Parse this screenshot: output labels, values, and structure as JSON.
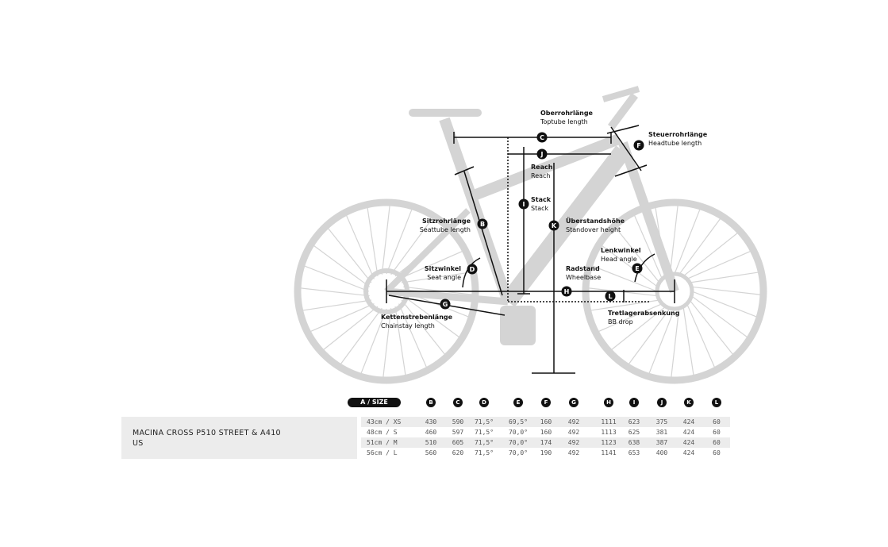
{
  "labels": {
    "C": {
      "de": "Oberrohrlänge",
      "en": "Toptube length"
    },
    "F": {
      "de": "Steuerrohrlänge",
      "en": "Headtube length"
    },
    "J": {
      "de": "Reach",
      "en": "Reach"
    },
    "I": {
      "de": "Stack",
      "en": "Stack"
    },
    "K": {
      "de": "Überstandshöhe",
      "en": "Standover height"
    },
    "B": {
      "de": "Sitzrohrlänge",
      "en": "Seattube length"
    },
    "D": {
      "de": "Sitzwinkel",
      "en": "Seat angle"
    },
    "E": {
      "de": "Lenkwinkel",
      "en": "Head angle"
    },
    "H": {
      "de": "Radstand",
      "en": "Wheelbase"
    },
    "G": {
      "de": "Kettenstrebenlänge",
      "en": "Chainstay length"
    },
    "L": {
      "de": "Tretlagerabsenkung",
      "en": "BB drop"
    }
  },
  "table": {
    "model": "MACINA CROSS P510 STREET & A410 US",
    "size_header": "A / SIZE",
    "columns": [
      "B",
      "C",
      "D",
      "E",
      "F",
      "G",
      "H",
      "I",
      "J",
      "K",
      "L"
    ],
    "rows": [
      {
        "size": "43cm / XS",
        "values": [
          "430",
          "590",
          "71,5°",
          "69,5°",
          "160",
          "492",
          "1111",
          "623",
          "375",
          "424",
          "60"
        ]
      },
      {
        "size": "48cm / S",
        "values": [
          "460",
          "597",
          "71,5°",
          "70,0°",
          "160",
          "492",
          "1113",
          "625",
          "381",
          "424",
          "60"
        ]
      },
      {
        "size": "51cm / M",
        "values": [
          "510",
          "605",
          "71,5°",
          "70,0°",
          "174",
          "492",
          "1123",
          "638",
          "387",
          "424",
          "60"
        ]
      },
      {
        "size": "56cm / L",
        "values": [
          "560",
          "620",
          "71,5°",
          "70,0°",
          "190",
          "492",
          "1141",
          "653",
          "400",
          "424",
          "60"
        ]
      }
    ]
  },
  "colors": {
    "bike": "#d4d4d4",
    "ink": "#111111"
  }
}
